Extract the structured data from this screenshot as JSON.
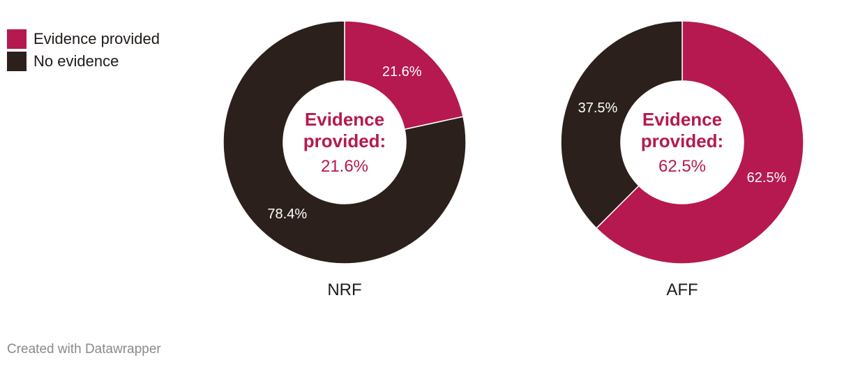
{
  "legend": [
    {
      "label": "Evidence provided",
      "color": "#b5194f"
    },
    {
      "label": "No evidence",
      "color": "#2b201b"
    }
  ],
  "chart_data": [
    {
      "type": "pie",
      "title": "NRF",
      "categories": [
        "Evidence provided",
        "No evidence"
      ],
      "values": [
        21.6,
        78.4
      ],
      "labels": [
        "21.6%",
        "78.4%"
      ],
      "colors": [
        "#b5194f",
        "#2b201b"
      ],
      "center_label": "Evidence provided:",
      "center_value": "21.6%"
    },
    {
      "type": "pie",
      "title": "AFF",
      "categories": [
        "Evidence provided",
        "No evidence"
      ],
      "values": [
        62.5,
        37.5
      ],
      "labels": [
        "62.5%",
        "37.5%"
      ],
      "colors": [
        "#b5194f",
        "#2b201b"
      ],
      "center_label": "Evidence provided:",
      "center_value": "62.5%"
    }
  ],
  "footer": "Created with Datawrapper"
}
